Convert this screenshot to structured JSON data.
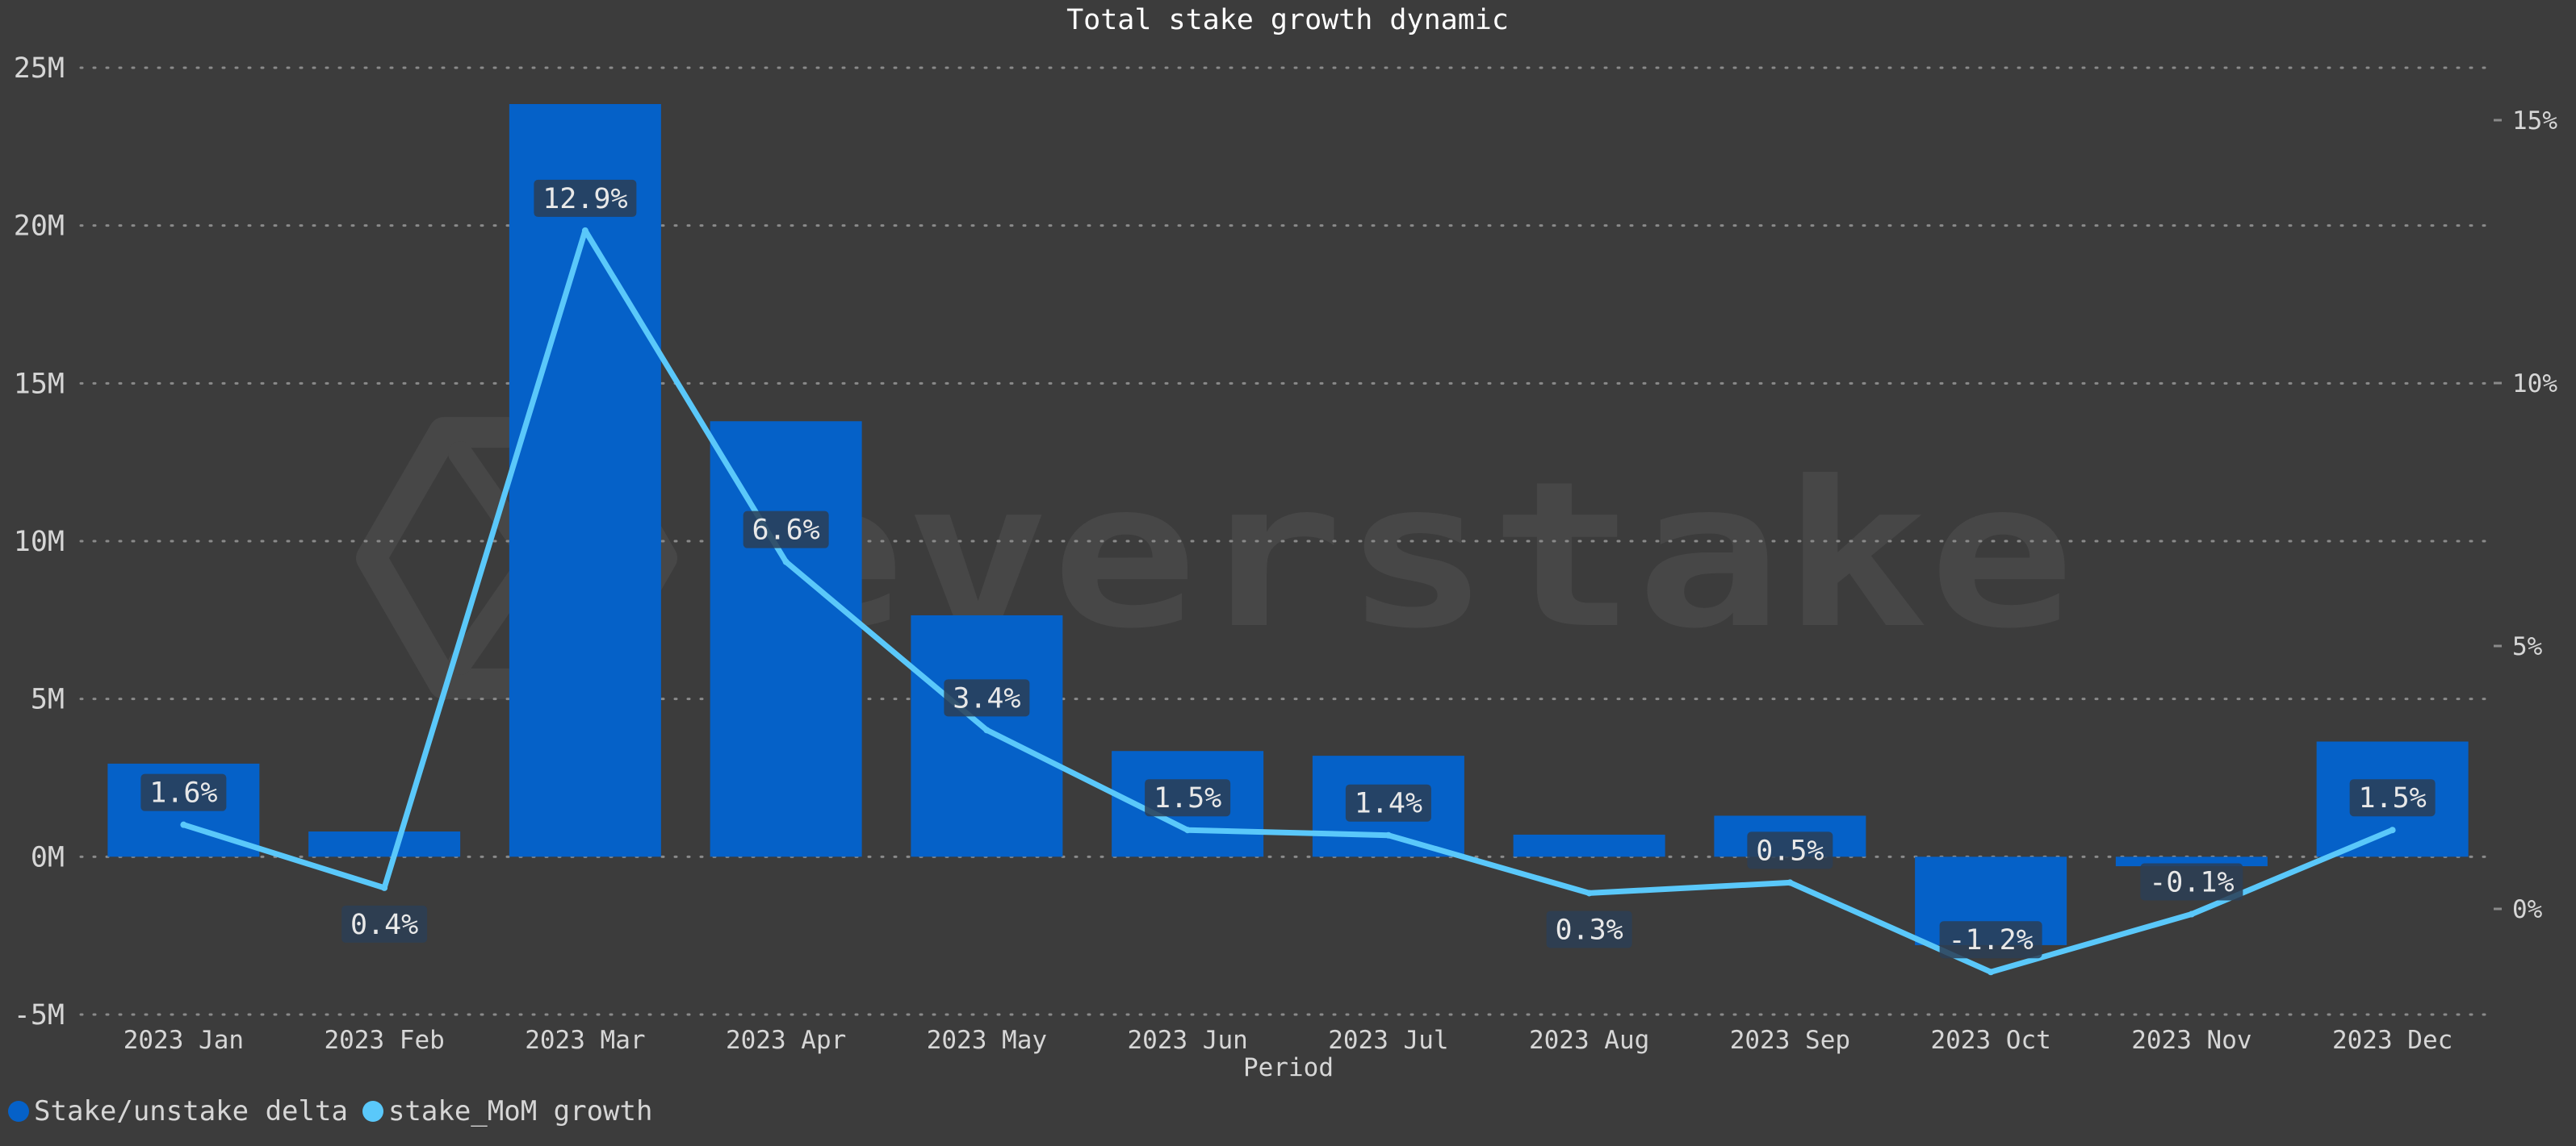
{
  "chart_data": {
    "type": "bar",
    "title": "Total stake growth dynamic",
    "xlabel": "Period",
    "ylabel": "",
    "watermark": "everstake",
    "categories": [
      "2023 Jan",
      "2023 Feb",
      "2023 Mar",
      "2023 Apr",
      "2023 May",
      "2023 Jun",
      "2023 Jul",
      "2023 Aug",
      "2023 Sep",
      "2023 Oct",
      "2023 Nov",
      "2023 Dec"
    ],
    "y_ticks": [
      "-5M",
      "0M",
      "5M",
      "10M",
      "15M",
      "20M",
      "25M"
    ],
    "y_tick_values": [
      -5000000,
      0,
      5000000,
      10000000,
      15000000,
      20000000,
      25000000
    ],
    "y2_ticks": [
      "0%",
      "5%",
      "10%",
      "15%"
    ],
    "y2_tick_values": [
      0,
      5,
      10,
      15
    ],
    "ylim": [
      -5000000,
      25000000
    ],
    "y2lim": [
      -1.94,
      16.14
    ],
    "grid": true,
    "legend_position": "bottom-left",
    "series": [
      {
        "name": "Stake/unstake delta",
        "kind": "bar",
        "axis": "left",
        "color": "#0561c8",
        "values": [
          2950000,
          800000,
          23850000,
          13800000,
          7650000,
          3350000,
          3200000,
          700000,
          1300000,
          -2800000,
          -300000,
          3650000
        ]
      },
      {
        "name": "stake_MoM growth",
        "kind": "line",
        "axis": "right",
        "color": "#5ac8fa",
        "values": [
          1.6,
          0.4,
          12.9,
          6.6,
          3.4,
          1.5,
          1.4,
          0.3,
          0.5,
          -1.2,
          -0.1,
          1.5
        ],
        "labels": [
          "1.6%",
          "0.4%",
          "12.9%",
          "6.6%",
          "3.4%",
          "1.5%",
          "1.4%",
          "0.3%",
          "0.5%",
          "-1.2%",
          "-0.1%",
          "1.5%"
        ],
        "label_positions": [
          "above",
          "below",
          "above",
          "above",
          "above",
          "above",
          "above",
          "below",
          "above",
          "above",
          "above",
          "above"
        ]
      }
    ]
  }
}
